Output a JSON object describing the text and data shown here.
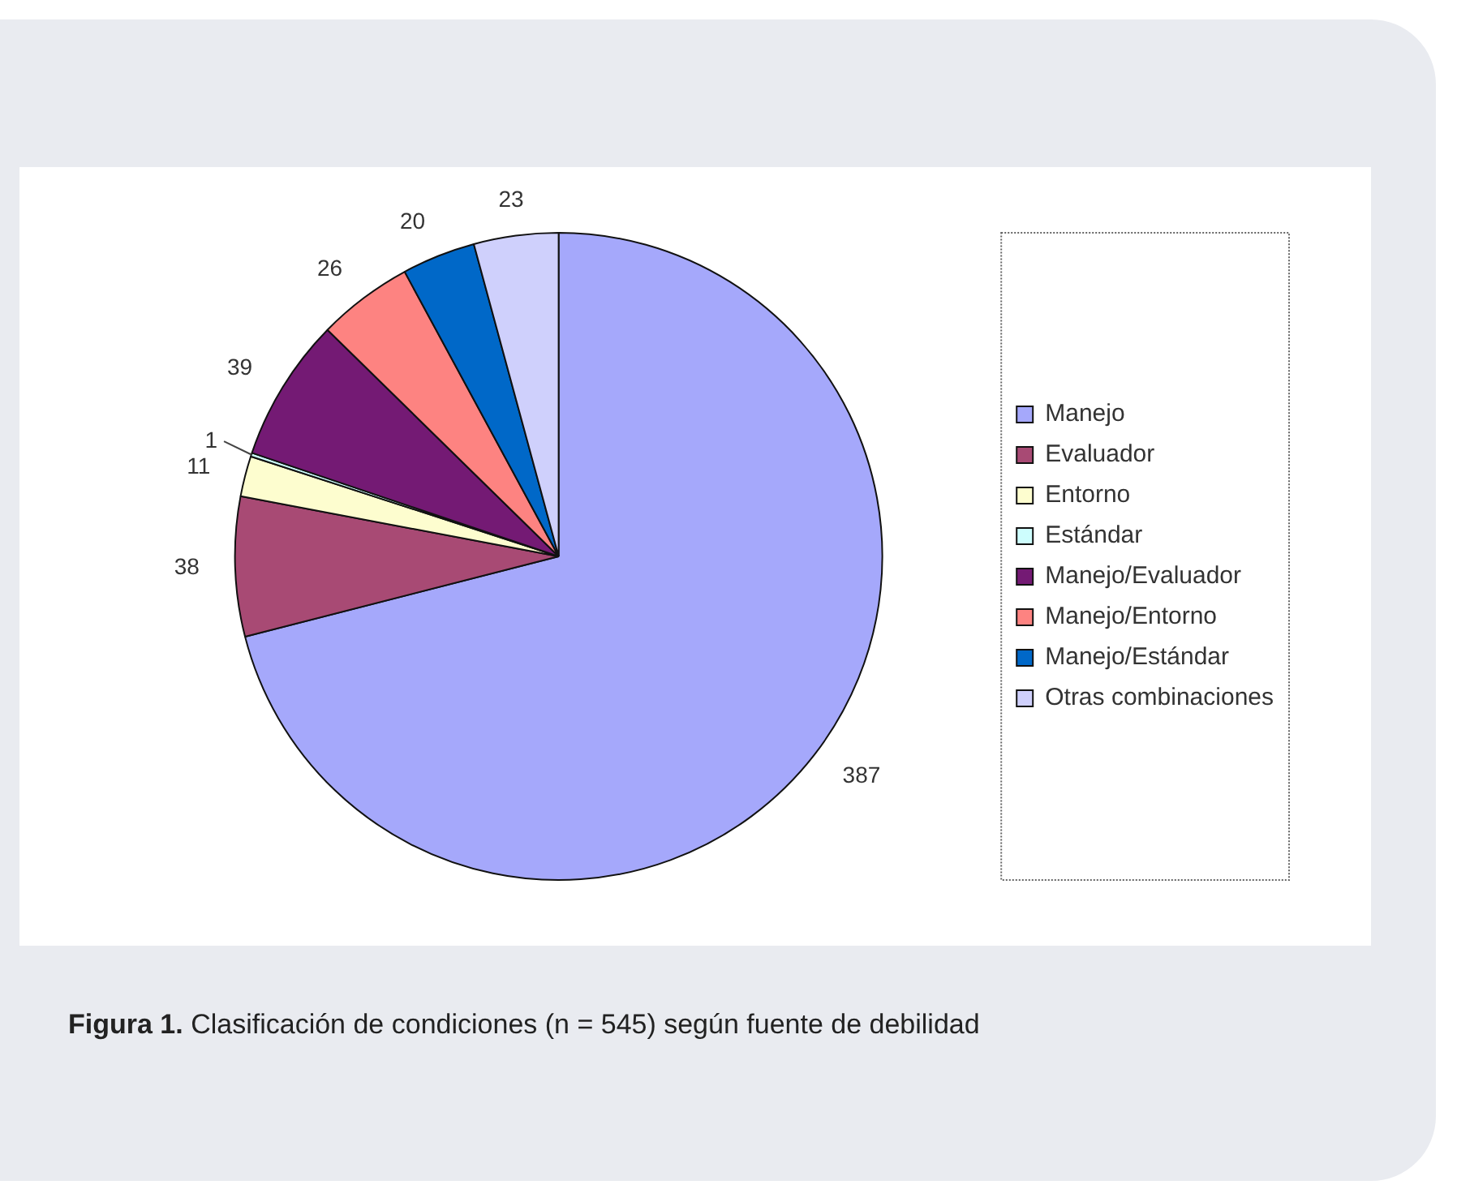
{
  "chart_data": {
    "type": "pie",
    "categories": [
      "Manejo",
      "Evaluador",
      "Entorno",
      "Estándar",
      "Manejo/Evaluador",
      "Manejo/Entorno",
      "Manejo/Estándar",
      "Otras combinaciones"
    ],
    "values": [
      387,
      38,
      11,
      1,
      39,
      26,
      20,
      23
    ],
    "colors": [
      "#a5a8fb",
      "#a84a74",
      "#fdfdcf",
      "#cdfdfd",
      "#741a74",
      "#fd8381",
      "#0068c8",
      "#cfd0fc"
    ],
    "data_labels": true,
    "legend": "right",
    "annotations": [
      "Figura 1. Clasificación de condiciones (n = 545) según fuente de debilidad"
    ]
  }
}
